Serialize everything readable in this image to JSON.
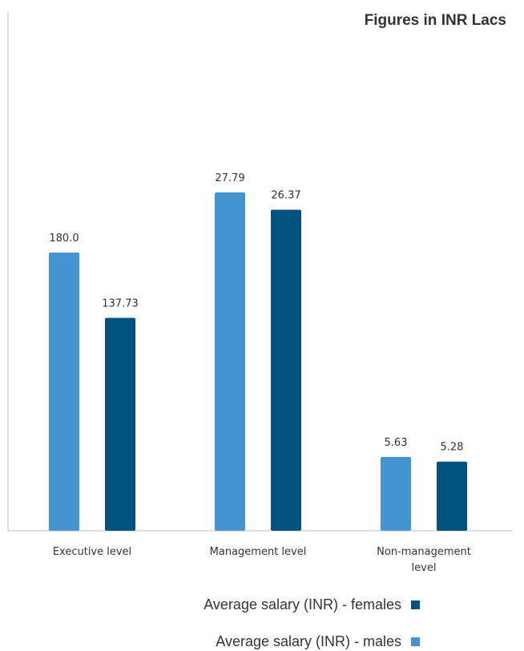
{
  "chart_data": {
    "type": "bar",
    "title": "Figures in INR Lacs",
    "categories": [
      "Executive level",
      "Management level",
      "Non-management level"
    ],
    "series": [
      {
        "name": "Average salary (INR) - males",
        "values": [
          180.0,
          27.79,
          5.63
        ],
        "labels": [
          "180.0",
          "27.79",
          "5.63"
        ],
        "color": "#4394D0"
      },
      {
        "name": "Average salary (INR) - females",
        "values": [
          137.73,
          26.37,
          5.28
        ],
        "labels": [
          "137.73",
          "26.37",
          "5.28"
        ],
        "color": "#00527F"
      }
    ],
    "value_scale": "independent per category (bars not drawn to a common axis)",
    "legend_position": "bottom-right",
    "grid": false
  }
}
